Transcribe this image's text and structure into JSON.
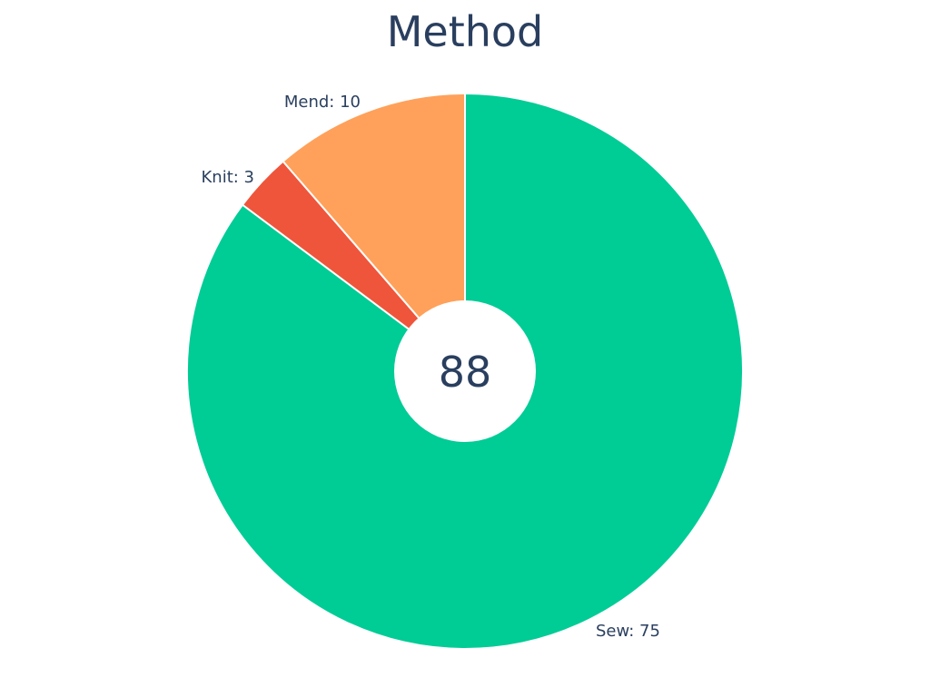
{
  "chart_data": {
    "type": "pie",
    "title": "Method",
    "hole": true,
    "center_text": "88",
    "direction": "clockwise",
    "start": "top",
    "slices": [
      {
        "label": "Sew",
        "value": 75,
        "text": "Sew: 75",
        "color": "#00cc96"
      },
      {
        "label": "Knit",
        "value": 3,
        "text": "Knit: 3",
        "color": "#ef553b"
      },
      {
        "label": "Mend",
        "value": 10,
        "text": "Mend: 10",
        "color": "#ffa15a"
      }
    ]
  }
}
